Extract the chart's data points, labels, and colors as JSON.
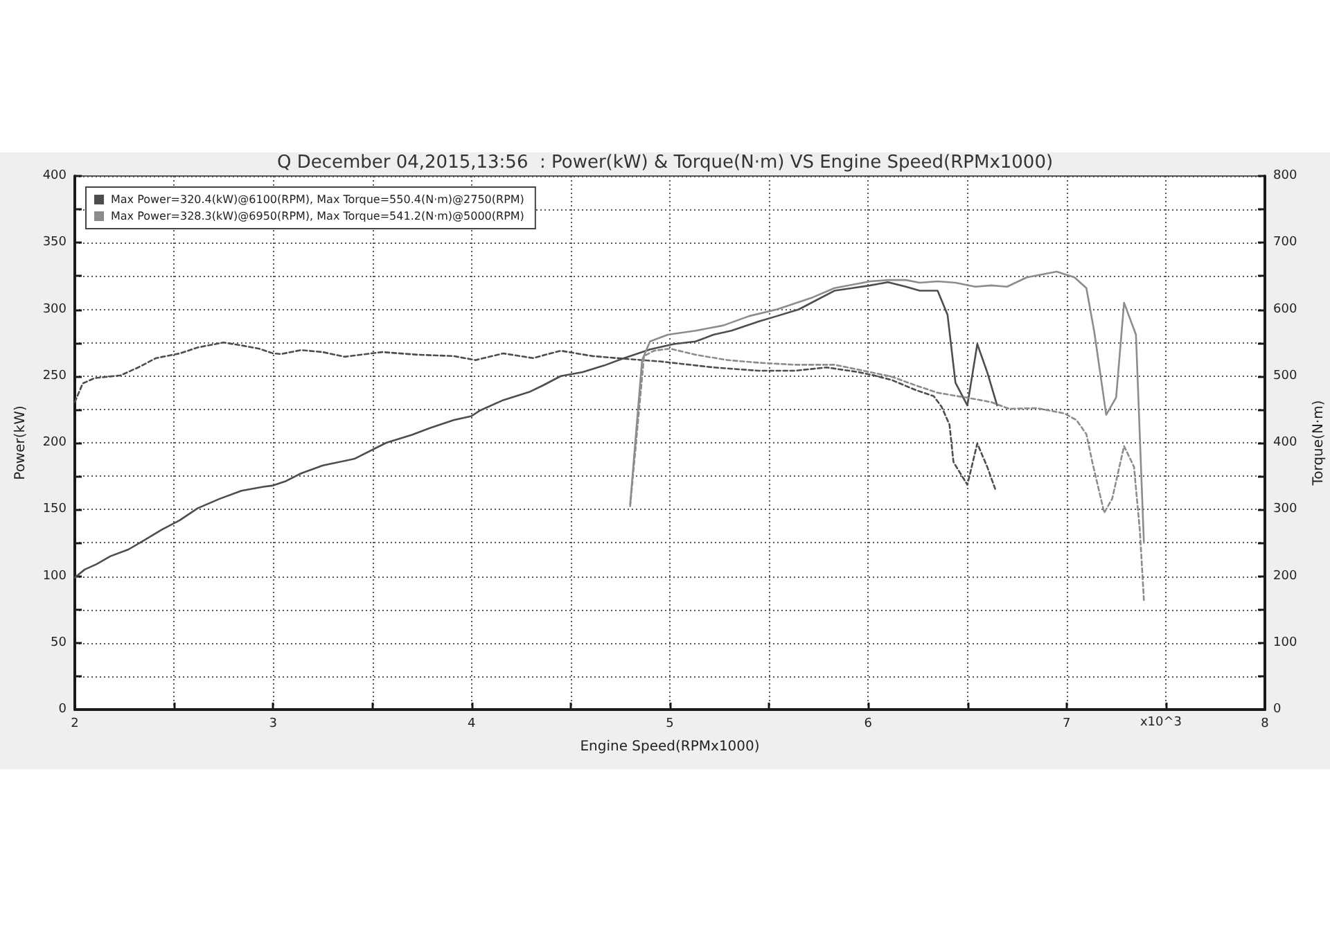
{
  "chart_data": {
    "type": "line",
    "title": "Q December 04,2015,13:56  : Power(kW) & Torque(N·m) VS Engine Speed(RPMx1000)",
    "xlabel": "Engine Speed(RPMx1000)",
    "ylabel": "Power(kW)",
    "y2label": "Torque(N·m)",
    "annotations": [
      "x10^3"
    ],
    "xlim": [
      2,
      8
    ],
    "xticks": [
      2,
      {
        "value": 2.5,
        "label": null
      },
      3,
      {
        "value": 3.5,
        "label": null
      },
      4,
      {
        "value": 4.5,
        "label": null
      },
      5,
      {
        "value": 5.5,
        "label": null
      },
      6,
      {
        "value": 6.5,
        "label": null
      },
      7,
      {
        "value": 7.5,
        "label": null
      },
      8
    ],
    "ylim": [
      0,
      400
    ],
    "yticks": [
      0,
      {
        "value": 25,
        "label": null
      },
      50,
      {
        "value": 75,
        "label": null
      },
      100,
      {
        "value": 125,
        "label": null
      },
      150,
      {
        "value": 175,
        "label": null
      },
      200,
      {
        "value": 225,
        "label": null
      },
      250,
      {
        "value": 275,
        "label": null
      },
      300,
      {
        "value": 325,
        "label": null
      },
      350,
      {
        "value": 375,
        "label": null
      },
      400
    ],
    "y2lim": [
      0,
      800
    ],
    "y2ticks": [
      0,
      {
        "value": 50,
        "label": null
      },
      100,
      {
        "value": 150,
        "label": null
      },
      200,
      {
        "value": 250,
        "label": null
      },
      300,
      {
        "value": 350,
        "label": null
      },
      400,
      {
        "value": 450,
        "label": null
      },
      500,
      {
        "value": 550,
        "label": null
      },
      600,
      {
        "value": 650,
        "label": null
      },
      700,
      {
        "value": 750,
        "label": null
      },
      800
    ],
    "grid": true,
    "legend": "top left",
    "marker": "none",
    "series": [
      {
        "name": "Max Power=320.4(kW)@6100(RPM), Max Torque=550.4(N·m)@2750(RPM)",
        "color": "#4d4d4d",
        "line_style": "solid",
        "x": [
          2.0,
          2.05,
          2.11,
          2.18,
          2.27,
          2.35,
          2.44,
          2.53,
          2.62,
          2.73,
          2.84,
          2.95,
          3.0,
          3.06,
          3.14,
          3.25,
          3.41,
          3.57,
          3.7,
          3.79,
          3.91,
          4.0,
          4.04,
          4.16,
          4.29,
          4.36,
          4.45,
          4.56,
          4.67,
          4.76,
          4.9,
          5.02,
          5.13,
          5.22,
          5.31,
          5.45,
          5.54,
          5.65,
          5.74,
          5.83,
          5.92,
          6.01,
          6.1,
          6.19,
          6.26,
          6.35,
          6.4,
          6.44,
          6.5,
          6.55,
          6.6,
          6.65
        ],
        "values": [
          99,
          105,
          109,
          115,
          120,
          127,
          135,
          142,
          151,
          158,
          164,
          167,
          168,
          171,
          177,
          183,
          188,
          200,
          206,
          211,
          217,
          220,
          224,
          232,
          238,
          243,
          250,
          253,
          258,
          263,
          270,
          274,
          276,
          281,
          284,
          291,
          295,
          300,
          307,
          314,
          316,
          318,
          320.4,
          317,
          314,
          314,
          296,
          245,
          228,
          274,
          253,
          228
        ]
      },
      {
        "color": "#4d4d4d",
        "line_style": "dashed",
        "axis": "y2",
        "x": [
          2.0,
          2.04,
          2.1,
          2.23,
          2.32,
          2.41,
          2.53,
          2.62,
          2.75,
          2.84,
          2.93,
          3.0,
          3.04,
          3.14,
          3.25,
          3.36,
          3.55,
          3.73,
          3.91,
          4.02,
          4.16,
          4.31,
          4.45,
          4.61,
          4.77,
          4.95,
          5.22,
          5.45,
          5.63,
          5.79,
          5.95,
          6.03,
          6.12,
          6.24,
          6.33,
          6.37,
          6.41,
          6.43,
          6.5,
          6.55,
          6.6,
          6.64
        ],
        "values": [
          461,
          489,
          497,
          501,
          513,
          527,
          534,
          543,
          550.4,
          546,
          541,
          534,
          533,
          539,
          536,
          529,
          536,
          532,
          530,
          524,
          534,
          527,
          538,
          530,
          526,
          522,
          513,
          508,
          508,
          513,
          506,
          501,
          494,
          479,
          470,
          454,
          427,
          371,
          337,
          399,
          364,
          331
        ]
      },
      {
        "name": "Max Power=328.3(kW)@6950(RPM), Max Torque=541.2(N·m)@5000(RPM)",
        "color": "#8c8c8c",
        "line_style": "solid",
        "x": [
          4.8,
          4.86,
          4.9,
          4.99,
          5.13,
          5.27,
          5.4,
          5.54,
          5.72,
          5.83,
          6.01,
          6.1,
          6.19,
          6.26,
          6.35,
          6.44,
          6.54,
          6.62,
          6.7,
          6.8,
          6.95,
          7.04,
          7.1,
          7.14,
          7.2,
          7.25,
          7.29,
          7.35,
          7.39
        ],
        "values": [
          154,
          262,
          276,
          281,
          284,
          288,
          295,
          300,
          309,
          316,
          321,
          322,
          322,
          320,
          321,
          320,
          317,
          318,
          317,
          324,
          328.3,
          324,
          316,
          283,
          221,
          234,
          305,
          281,
          125
        ]
      },
      {
        "color": "#8c8c8c",
        "line_style": "dashed",
        "axis": "y2",
        "x": [
          4.8,
          4.87,
          4.92,
          5.0,
          5.13,
          5.29,
          5.45,
          5.63,
          5.83,
          6.01,
          6.12,
          6.24,
          6.35,
          6.49,
          6.62,
          6.71,
          6.85,
          6.99,
          7.05,
          7.1,
          7.13,
          7.19,
          7.23,
          7.29,
          7.34,
          7.37,
          7.39
        ],
        "values": [
          305,
          530,
          538,
          541.2,
          532,
          524,
          520,
          517,
          517,
          506,
          499,
          486,
          475,
          468,
          461,
          451,
          452,
          444,
          434,
          413,
          371,
          295,
          316,
          395,
          364,
          267,
          164
        ]
      }
    ]
  }
}
